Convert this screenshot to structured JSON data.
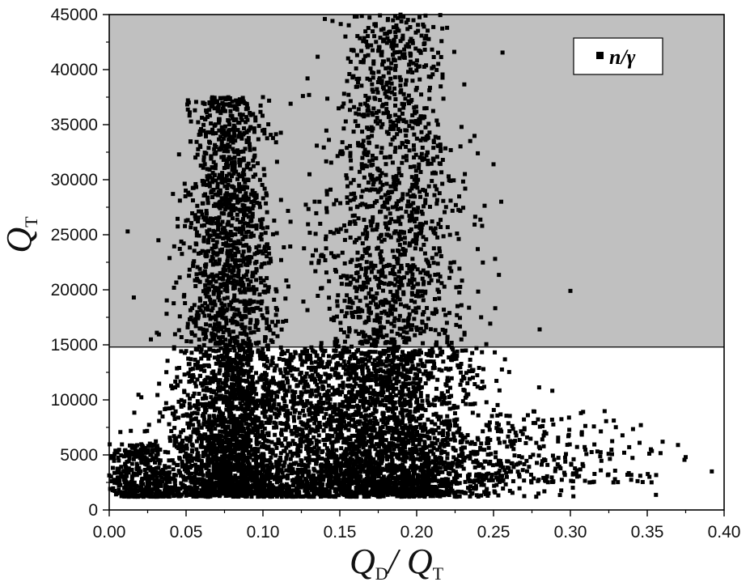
{
  "chart_data": {
    "type": "scatter",
    "xlabel": {
      "main": "Q",
      "sub1": "D",
      "mid": "/ Q",
      "sub2": "T"
    },
    "ylabel": {
      "main": "Q",
      "sub": "T"
    },
    "xlim": [
      0.0,
      0.4
    ],
    "ylim": [
      0,
      45000
    ],
    "x_ticks": [
      0.0,
      0.05,
      0.1,
      0.15,
      0.2,
      0.25,
      0.3,
      0.35,
      0.4
    ],
    "x_tick_labels": [
      "0.00",
      "0.05",
      "0.10",
      "0.15",
      "0.20",
      "0.25",
      "0.30",
      "0.35",
      "0.40"
    ],
    "y_ticks": [
      0,
      5000,
      10000,
      15000,
      20000,
      25000,
      30000,
      35000,
      40000,
      45000
    ],
    "y_tick_labels": [
      "0",
      "5000",
      "10000",
      "15000",
      "20000",
      "25000",
      "30000",
      "35000",
      "40000",
      "45000"
    ],
    "threshold": {
      "y": 14800,
      "region_above_color": "#c0c0c0",
      "region_below_color": "#ffffff"
    },
    "legend": {
      "label": "n/γ",
      "placement": "top-right"
    },
    "grid": false,
    "marker_color": "#000000",
    "series": [
      {
        "clusters": [
          {
            "x_center": 0.078,
            "x_spread": 0.018,
            "y_min": 1500,
            "y_max": 37500,
            "count": 2600
          },
          {
            "x_center": 0.185,
            "x_spread": 0.028,
            "y_min": 1500,
            "y_max": 45000,
            "count": 2600
          },
          {
            "x_center": 0.14,
            "x_spread": 0.06,
            "y_min": 1200,
            "y_max": 14500,
            "count": 2400
          },
          {
            "x_center": 0.27,
            "x_spread": 0.05,
            "y_min": 2500,
            "y_max": 9000,
            "count": 300
          },
          {
            "x_center": 0.02,
            "x_spread": 0.015,
            "y_min": 1200,
            "y_max": 6000,
            "count": 400
          }
        ],
        "outliers": [
          [
            0.3,
            19900
          ],
          [
            0.392,
            3500
          ],
          [
            0.375,
            4800
          ],
          [
            0.37,
            5900
          ],
          [
            0.36,
            6200
          ],
          [
            0.25,
            31400
          ],
          [
            0.28,
            16400
          ],
          [
            0.255,
            28000
          ],
          [
            0.016,
            19300
          ],
          [
            0.032,
            24500
          ],
          [
            0.012,
            25300
          ],
          [
            0.047,
            15700
          ],
          [
            0.031,
            16100
          ],
          [
            0.335,
            5200
          ],
          [
            0.345,
            6100
          ],
          [
            0.1,
            37500
          ],
          [
            0.118,
            36900
          ],
          [
            0.13,
            37700
          ],
          [
            0.129,
            39200
          ],
          [
            0.126,
            37600
          ]
        ]
      }
    ]
  }
}
